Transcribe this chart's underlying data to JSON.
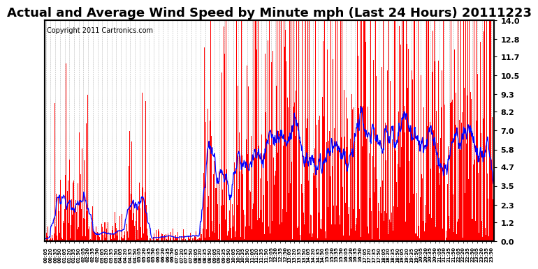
{
  "title": "Actual and Average Wind Speed by Minute mph (Last 24 Hours) 20111223",
  "copyright": "Copyright 2011 Cartronics.com",
  "yticks": [
    0.0,
    1.2,
    2.3,
    3.5,
    4.7,
    5.8,
    7.0,
    8.2,
    9.3,
    10.5,
    11.7,
    12.8,
    14.0
  ],
  "ymax": 14.0,
  "ymin": 0.0,
  "bar_color": "#FF0000",
  "line_color": "#0000FF",
  "background_color": "#FFFFFF",
  "title_fontsize": 13,
  "copyright_fontsize": 7,
  "seed": 42,
  "n_minutes": 1440,
  "avg_window": 30
}
